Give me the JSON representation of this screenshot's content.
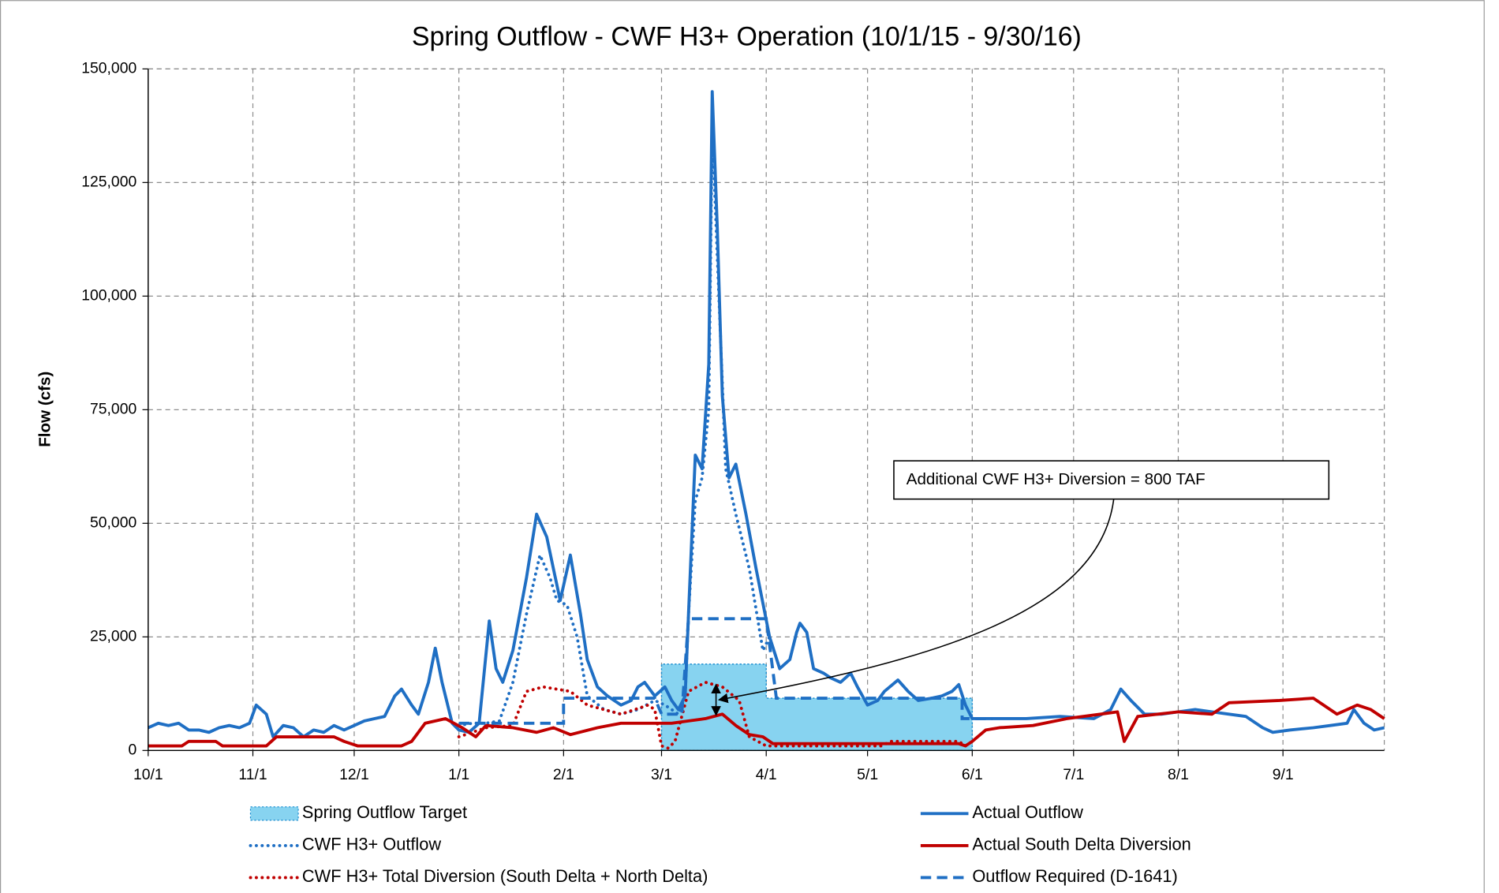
{
  "chart_data": {
    "type": "line",
    "title": "Spring Outflow - CWF H3+ Operation (10/1/15 - 9/30/16)",
    "ylabel": "Flow (cfs)",
    "annotation": "Additional CWF H3+ Diversion = 800 TAF",
    "grid": true,
    "xlim": [
      0,
      366
    ],
    "ylim": [
      0,
      150000
    ],
    "xticks": [
      {
        "value": 0,
        "label": "10/1"
      },
      {
        "value": 31,
        "label": "11/1"
      },
      {
        "value": 61,
        "label": "12/1"
      },
      {
        "value": 92,
        "label": "1/1"
      },
      {
        "value": 123,
        "label": "2/1"
      },
      {
        "value": 152,
        "label": "3/1"
      },
      {
        "value": 183,
        "label": "4/1"
      },
      {
        "value": 213,
        "label": "5/1"
      },
      {
        "value": 244,
        "label": "6/1"
      },
      {
        "value": 274,
        "label": "7/1"
      },
      {
        "value": 305,
        "label": "8/1"
      },
      {
        "value": 336,
        "label": "9/1"
      }
    ],
    "yticks": [
      0,
      {
        "value": 25000,
        "label": "25,000"
      },
      {
        "value": 50000,
        "label": "50,000"
      },
      {
        "value": 75000,
        "label": "75,000"
      },
      {
        "value": 100000,
        "label": "100,000"
      },
      {
        "value": 125000,
        "label": "125,000"
      },
      {
        "value": 150000,
        "label": "150,000"
      }
    ],
    "series": [
      {
        "name": "Spring Outflow Target",
        "color": "#87d3f0",
        "style": "area",
        "x": [
          152,
          183,
          183,
          244
        ],
        "values": [
          19000,
          19000,
          11500,
          11500
        ]
      },
      {
        "name": "CWF H3+ Outflow",
        "color": "#1f6fc4",
        "style": "dotted",
        "x": [
          92,
          96,
          100,
          104,
          108,
          112,
          116,
          119,
          121,
          124,
          127,
          130,
          135,
          140,
          145,
          150,
          153,
          155,
          157,
          159,
          160,
          162,
          164,
          166,
          167,
          169,
          171,
          174,
          178,
          182,
          184
        ],
        "values": [
          5500,
          6000,
          6000,
          6500,
          15000,
          30000,
          43000,
          38000,
          33000,
          32000,
          25000,
          12000,
          9000,
          8000,
          9000,
          11000,
          10000,
          9000,
          8000,
          12000,
          30000,
          55000,
          60000,
          75000,
          137000,
          100000,
          62000,
          52000,
          40000,
          22000,
          25000
        ]
      },
      {
        "name": "CWF H3+ Total Diversion (South Delta + North Delta)",
        "color": "#c00000",
        "style": "dotted",
        "x": [
          92,
          100,
          108,
          112,
          117,
          125,
          130,
          140,
          148,
          150,
          152,
          154,
          156,
          160,
          165,
          170,
          175,
          178,
          183,
          217,
          220,
          240,
          242,
          244
        ],
        "values": [
          3000,
          5000,
          5500,
          13000,
          14000,
          13000,
          10000,
          8000,
          10000,
          9000,
          1000,
          500,
          2000,
          13000,
          15000,
          14000,
          11000,
          3000,
          1000,
          1000,
          2000,
          2000,
          1000,
          2000
        ]
      },
      {
        "name": "Actual Outflow",
        "color": "#1f6fc4",
        "style": "solid",
        "x": [
          0,
          3,
          6,
          9,
          12,
          15,
          18,
          21,
          24,
          27,
          30,
          32,
          35,
          37,
          40,
          43,
          46,
          49,
          52,
          55,
          58,
          61,
          64,
          67,
          70,
          73,
          75,
          78,
          80,
          83,
          85,
          87,
          90,
          92,
          95,
          98,
          101,
          103,
          105,
          108,
          112,
          115,
          118,
          120,
          122,
          125,
          128,
          130,
          133,
          136,
          140,
          143,
          145,
          147,
          150,
          153,
          155,
          157,
          159,
          160,
          162,
          164,
          166,
          167,
          168.5,
          170,
          172,
          174,
          177,
          180,
          184,
          187,
          190,
          192,
          193,
          195,
          197,
          200,
          202,
          205,
          208,
          210,
          213,
          216,
          218,
          222,
          225,
          228,
          232,
          235,
          238,
          240,
          242,
          244,
          250,
          260,
          270,
          280,
          285,
          288,
          291,
          295,
          300,
          305,
          310,
          315,
          320,
          325,
          330,
          333,
          338,
          345,
          350,
          355,
          357,
          360,
          363,
          366
        ],
        "values": [
          5000,
          6000,
          5500,
          6000,
          4500,
          4500,
          4000,
          5000,
          5500,
          5000,
          6000,
          10000,
          8000,
          3000,
          5500,
          5000,
          3000,
          4500,
          4000,
          5500,
          4500,
          5500,
          6500,
          7000,
          7500,
          12000,
          13500,
          10000,
          8000,
          15000,
          22500,
          15000,
          6000,
          4500,
          4000,
          6000,
          28500,
          18000,
          15000,
          22000,
          38000,
          52000,
          47000,
          40000,
          33000,
          43000,
          30000,
          20000,
          14000,
          12000,
          10000,
          11000,
          14000,
          15000,
          12000,
          14000,
          11000,
          9000,
          12000,
          30000,
          65000,
          62000,
          85000,
          145000,
          115000,
          78000,
          60000,
          63000,
          52000,
          40000,
          25000,
          18000,
          20000,
          26000,
          28000,
          26000,
          18000,
          17000,
          16000,
          15000,
          17000,
          14000,
          10000,
          11000,
          13000,
          15500,
          13000,
          11000,
          11500,
          12000,
          13000,
          14500,
          10000,
          7000,
          7000,
          7000,
          7500,
          7000,
          9000,
          13500,
          11000,
          8000,
          8000,
          8500,
          9000,
          8500,
          8000,
          7500,
          5000,
          4000,
          4500,
          5000,
          5500,
          6000,
          9000,
          6000,
          4500,
          5000
        ]
      },
      {
        "name": "Actual South Delta Diversion",
        "color": "#c00000",
        "style": "solid",
        "x": [
          0,
          10,
          12,
          20,
          22,
          35,
          38,
          55,
          58,
          62,
          75,
          78,
          82,
          88,
          93,
          97,
          100,
          108,
          115,
          120,
          125,
          133,
          140,
          155,
          160,
          165,
          170,
          174,
          178,
          182,
          185,
          240,
          242,
          244,
          248,
          252,
          262,
          272,
          282,
          287,
          289,
          293,
          305,
          315,
          320,
          335,
          345,
          352,
          358,
          362,
          366
        ],
        "values": [
          1000,
          1000,
          2000,
          2000,
          1000,
          1000,
          3000,
          3000,
          2000,
          1000,
          1000,
          2000,
          6000,
          7000,
          5000,
          3000,
          5500,
          5000,
          4000,
          5000,
          3500,
          5000,
          6000,
          6000,
          6500,
          7000,
          8000,
          5500,
          3500,
          3000,
          1500,
          1500,
          1000,
          2000,
          4500,
          5000,
          5500,
          7000,
          8000,
          8500,
          2000,
          7500,
          8500,
          8000,
          10500,
          11000,
          11500,
          8000,
          10000,
          9000,
          7000
        ]
      },
      {
        "name": "Outflow Required (D-1641)",
        "color": "#1f6fc4",
        "style": "dashed",
        "x": [
          92,
          123,
          123,
          150,
          152,
          158,
          160,
          183,
          186,
          241,
          241,
          250
        ],
        "values": [
          6000,
          6000,
          11500,
          11500,
          8000,
          8000,
          29000,
          29000,
          11500,
          11500,
          7000,
          7000
        ]
      }
    ]
  }
}
